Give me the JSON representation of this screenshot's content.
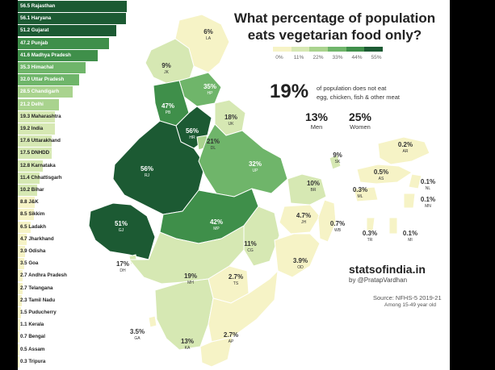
{
  "title_line1": "What percentage of population",
  "title_line2": "eats vegetarian food only?",
  "legend": {
    "ticks": [
      "0%",
      "11%",
      "22%",
      "33%",
      "44%",
      "55%"
    ],
    "colors": [
      "#f6f3c6",
      "#d6e8b3",
      "#a9d38e",
      "#6fb56a",
      "#3f8f4a",
      "#1c5a33"
    ]
  },
  "highlight": {
    "value": "19%",
    "desc_line1": "of population does not eat",
    "desc_line2": "egg, chicken, fish & other meat"
  },
  "gender": [
    {
      "value": "13%",
      "label": "Men"
    },
    {
      "value": "25%",
      "label": "Women"
    }
  ],
  "brand": "statsofindia.in",
  "handle": "by @PratapVardhan",
  "source": "Source: NFHS-5 2019-21",
  "sample": "Among 15-49 year old",
  "chart_data": {
    "type": "bar",
    "orientation": "horizontal",
    "title": "What percentage of population eats vegetarian food only?",
    "categories": [
      "Rajasthan",
      "Haryana",
      "Gujarat",
      "Punjab",
      "Madhya Pradesh",
      "Himachal",
      "Uttar Pradesh",
      "Chandigarh",
      "Delhi",
      "Maharashtra",
      "India",
      "Uttarakhand",
      "DNHDD",
      "Karnataka",
      "Chhattisgarh",
      "Bihar",
      "J&K",
      "Sikkim",
      "Ladakh",
      "Jharkhand",
      "Odisha",
      "Goa",
      "Andhra Pradesh",
      "Telangana",
      "Tamil Nadu",
      "Puducherry",
      "Kerala",
      "Bengal",
      "Assam",
      "Tripura"
    ],
    "values": [
      56.5,
      56.1,
      51.2,
      47.2,
      41.6,
      35.3,
      32.0,
      28.5,
      21.2,
      19.3,
      19.2,
      17.6,
      17.5,
      12.8,
      11.4,
      10.2,
      8.8,
      8.5,
      6.5,
      4.7,
      3.9,
      3.5,
      2.7,
      2.7,
      2.3,
      1.5,
      1.1,
      0.7,
      0.5,
      0.3
    ],
    "labels": [
      "56.5 Rajasthan",
      "56.1 Haryana",
      "51.2 Gujarat",
      "47.2 Punjab",
      "41.6 Madhya Pradesh",
      "35.3 Himachal",
      "32.0 Uttar Pradesh",
      "28.5 Chandigarh",
      "21.2 Delhi",
      "19.3 Maharashtra",
      "19.2 India",
      "17.6 Uttarakhand",
      "17.5 DNHDD",
      "12.8 Karnataka",
      "11.4 Chhattisgarh",
      "10.2 Bihar",
      "8.8 J&K",
      "8.5 Sikkim",
      "6.5 Ladakh",
      "4.7 Jharkhand",
      "3.9 Odisha",
      "3.5 Goa",
      "2.7 Andhra Pradesh",
      "2.7 Telangana",
      "2.3 Tamil Nadu",
      "1.5 Puducherry",
      "1.1 Kerala",
      "0.7 Bengal",
      "0.5 Assam",
      "0.3 Tripura"
    ],
    "map_states": [
      {
        "code": "LA",
        "value": "6%",
        "v": 6
      },
      {
        "code": "JK",
        "value": "9%",
        "v": 9
      },
      {
        "code": "HP",
        "value": "35%",
        "v": 35
      },
      {
        "code": "PB",
        "value": "47%",
        "v": 47
      },
      {
        "code": "UK",
        "value": "18%",
        "v": 18
      },
      {
        "code": "HR",
        "value": "56%",
        "v": 56
      },
      {
        "code": "DL",
        "value": "21%",
        "v": 21
      },
      {
        "code": "RJ",
        "value": "56%",
        "v": 56
      },
      {
        "code": "UP",
        "value": "32%",
        "v": 32
      },
      {
        "code": "GJ",
        "value": "51%",
        "v": 51
      },
      {
        "code": "MP",
        "value": "42%",
        "v": 42
      },
      {
        "code": "BR",
        "value": "10%",
        "v": 10
      },
      {
        "code": "SK",
        "value": "9%",
        "v": 9
      },
      {
        "code": "AR",
        "value": "0.2%",
        "v": 0.2
      },
      {
        "code": "AS",
        "value": "0.5%",
        "v": 0.5
      },
      {
        "code": "NL",
        "value": "0.1%",
        "v": 0.1
      },
      {
        "code": "ML",
        "value": "0.3%",
        "v": 0.3
      },
      {
        "code": "MN",
        "value": "0.1%",
        "v": 0.1
      },
      {
        "code": "JH",
        "value": "4.7%",
        "v": 4.7
      },
      {
        "code": "WB",
        "value": "0.7%",
        "v": 0.7
      },
      {
        "code": "TR",
        "value": "0.3%",
        "v": 0.3
      },
      {
        "code": "MI",
        "value": "0.1%",
        "v": 0.1
      },
      {
        "code": "CG",
        "value": "11%",
        "v": 11
      },
      {
        "code": "OD",
        "value": "3.9%",
        "v": 3.9
      },
      {
        "code": "DH",
        "value": "17%",
        "v": 17
      },
      {
        "code": "MH",
        "value": "19%",
        "v": 19
      },
      {
        "code": "TS",
        "value": "2.7%",
        "v": 2.7
      },
      {
        "code": "GA",
        "value": "3.5%",
        "v": 3.5
      },
      {
        "code": "KA",
        "value": "13%",
        "v": 13
      },
      {
        "code": "AP",
        "value": "2.7%",
        "v": 2.7
      }
    ]
  }
}
